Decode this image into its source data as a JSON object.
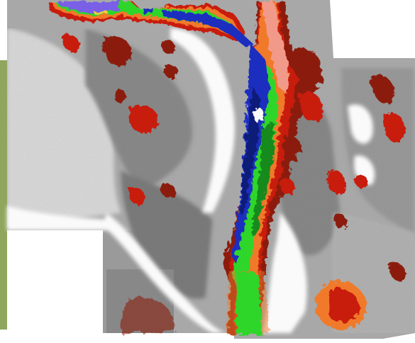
{
  "image": {
    "kind": "classified-thermal-mosaic",
    "colors": {
      "page_background": "#ffffff",
      "terrain_light": "#e4e4e4",
      "terrain_mid": "#a8a8a8",
      "terrain_dark": "#7a7a7a",
      "white_sand": "#fafafa",
      "class_dark_red": "#8b1a0a",
      "class_red": "#c81e0e",
      "class_orange": "#f07a2c",
      "class_salmon": "#f29a8a",
      "class_green": "#2fd62a",
      "class_dark_green": "#178a1c",
      "class_blue": "#1f2fc0",
      "class_navy": "#0c1a78",
      "class_violet": "#7a60e6",
      "class_yellow": "#e8d23a",
      "left_edge_vegetation": "#8fa65c"
    }
  }
}
